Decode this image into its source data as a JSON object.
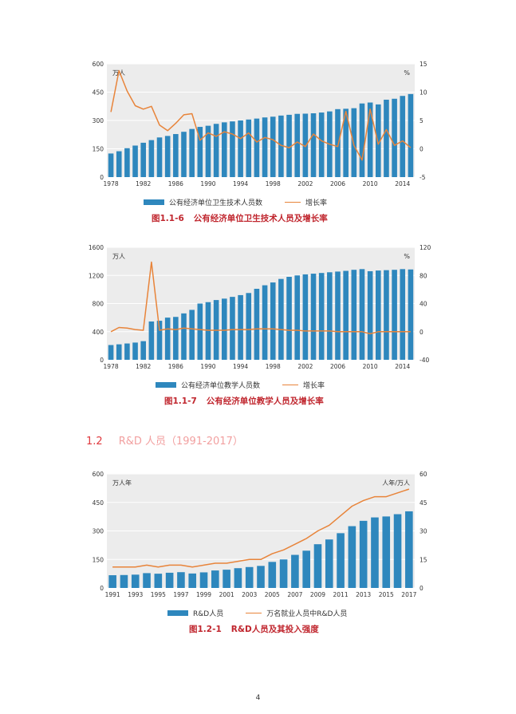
{
  "section": {
    "number": "1.2",
    "title": "R&D 人员（1991-2017）"
  },
  "page_number": "4",
  "colors": {
    "bar": "#2e87bd",
    "line": "#e8843a",
    "caption": "#c0262e",
    "panel": "#ececec"
  },
  "figures": [
    {
      "caption_number": "图1.1-6",
      "caption_title": "公有经济单位卫生技术人员及增长率",
      "legend_bar": "公有经济单位卫生技术人员数",
      "legend_line": "增长率"
    },
    {
      "caption_number": "图1.1-7",
      "caption_title": "公有经济单位教学人员及增长率",
      "legend_bar": "公有经济单位教学人员数",
      "legend_line": "增长率"
    },
    {
      "caption_number": "图1.2-1",
      "caption_title": "R&D人员及其投入强度",
      "legend_bar": "R&D人员",
      "legend_line": "万名就业人员中R&D人员"
    }
  ],
  "chart_data": [
    {
      "type": "bar",
      "y_unit_left": "万人",
      "y_unit_right": "%",
      "ylim": [
        0,
        600
      ],
      "ylim_right": [
        -5,
        15
      ],
      "yticks": [
        0,
        150,
        300,
        450,
        600
      ],
      "yticks_right": [
        -5,
        0,
        5,
        10,
        15
      ],
      "xticks": [
        "1978",
        "1982",
        "1986",
        "1990",
        "1994",
        "1998",
        "2002",
        "2006",
        "2010",
        "2014"
      ],
      "grid": true,
      "x": [
        1978,
        1979,
        1980,
        1981,
        1982,
        1983,
        1984,
        1985,
        1986,
        1987,
        1988,
        1989,
        1990,
        1991,
        1992,
        1993,
        1994,
        1995,
        1996,
        1997,
        1998,
        1999,
        2000,
        2001,
        2002,
        2003,
        2004,
        2005,
        2006,
        2007,
        2008,
        2009,
        2010,
        2011,
        2012,
        2013,
        2014,
        2015
      ],
      "series": [
        {
          "name": "公有经济单位卫生技术人员数",
          "kind": "bar",
          "axis": "left",
          "values": [
            125,
            137,
            153,
            167,
            182,
            196,
            210,
            218,
            228,
            240,
            255,
            266,
            272,
            282,
            290,
            295,
            300,
            305,
            310,
            316,
            320,
            326,
            330,
            335,
            336,
            338,
            342,
            348,
            360,
            362,
            365,
            390,
            395,
            385,
            410,
            415,
            430,
            440
          ]
        },
        {
          "name": "增长率",
          "kind": "line",
          "axis": "right",
          "values": [
            6.5,
            13.8,
            10.2,
            7.6,
            7.0,
            7.5,
            4.2,
            3.2,
            4.5,
            6.0,
            6.2,
            1.5,
            2.8,
            2.2,
            3.0,
            2.6,
            1.8,
            2.8,
            1.2,
            2.0,
            1.6,
            0.6,
            0.2,
            1.2,
            0.4,
            2.6,
            1.4,
            0.8,
            0.4,
            6.6,
            0.6,
            -2.0,
            7.0,
            0.8,
            3.4,
            0.6,
            1.4,
            0.2
          ]
        }
      ]
    },
    {
      "type": "bar",
      "y_unit_left": "万人",
      "y_unit_right": "%",
      "ylim": [
        0,
        1600
      ],
      "ylim_right": [
        -40,
        120
      ],
      "yticks": [
        0,
        400,
        800,
        1200,
        1600
      ],
      "yticks_right": [
        -40,
        0,
        40,
        80,
        120
      ],
      "xticks": [
        "1978",
        "1982",
        "1986",
        "1990",
        "1994",
        "1998",
        "2002",
        "2006",
        "2010",
        "2014"
      ],
      "grid": true,
      "x": [
        1978,
        1979,
        1980,
        1981,
        1982,
        1983,
        1984,
        1985,
        1986,
        1987,
        1988,
        1989,
        1990,
        1991,
        1992,
        1993,
        1994,
        1995,
        1996,
        1997,
        1998,
        1999,
        2000,
        2001,
        2002,
        2003,
        2004,
        2005,
        2006,
        2007,
        2008,
        2009,
        2010,
        2011,
        2012,
        2013,
        2014,
        2015
      ],
      "series": [
        {
          "name": "公有经济单位教学人员数",
          "kind": "bar",
          "axis": "left",
          "values": [
            210,
            220,
            232,
            245,
            265,
            545,
            555,
            600,
            610,
            660,
            710,
            800,
            820,
            850,
            870,
            895,
            920,
            950,
            1010,
            1060,
            1100,
            1150,
            1180,
            1200,
            1215,
            1225,
            1235,
            1245,
            1255,
            1265,
            1280,
            1290,
            1260,
            1270,
            1275,
            1280,
            1290,
            1285
          ]
        },
        {
          "name": "增长率",
          "kind": "line",
          "axis": "right",
          "values": [
            0,
            6,
            5,
            3,
            2,
            99,
            2,
            4,
            3,
            5,
            4,
            3,
            2,
            2,
            2,
            3,
            3,
            3,
            4,
            4,
            4,
            3,
            2,
            2,
            1,
            1,
            1,
            1,
            0,
            0,
            0,
            0,
            -3,
            0,
            0,
            0,
            0,
            0
          ]
        }
      ]
    },
    {
      "type": "bar",
      "y_unit_left": "万人年",
      "y_unit_right": "人年/万人",
      "ylim": [
        0,
        600
      ],
      "ylim_right": [
        0,
        60
      ],
      "yticks": [
        0,
        150,
        300,
        450,
        600
      ],
      "yticks_right": [
        0,
        15,
        30,
        45,
        60
      ],
      "xticks": [
        "1991",
        "1993",
        "1995",
        "1997",
        "1999",
        "2001",
        "2003",
        "2005",
        "2007",
        "2009",
        "2011",
        "2013",
        "2015",
        "2017"
      ],
      "grid": true,
      "x": [
        1991,
        1992,
        1993,
        1994,
        1995,
        1996,
        1997,
        1998,
        1999,
        2000,
        2001,
        2002,
        2003,
        2004,
        2005,
        2006,
        2007,
        2008,
        2009,
        2010,
        2011,
        2012,
        2013,
        2014,
        2015,
        2016,
        2017
      ],
      "series": [
        {
          "name": "R&D人员",
          "kind": "bar",
          "axis": "left",
          "values": [
            67,
            68,
            70,
            78,
            75,
            80,
            83,
            76,
            82,
            92,
            96,
            104,
            110,
            116,
            137,
            150,
            174,
            196,
            230,
            255,
            288,
            325,
            353,
            371,
            376,
            388,
            403
          ]
        },
        {
          "name": "万名就业人员中R&D人员",
          "kind": "line",
          "axis": "right",
          "values": [
            11,
            11,
            11,
            12,
            11,
            12,
            12,
            11,
            12,
            13,
            13,
            14,
            15,
            15,
            18,
            20,
            23,
            26,
            30,
            33,
            38,
            43,
            46,
            48,
            48,
            50,
            52
          ]
        }
      ]
    }
  ]
}
